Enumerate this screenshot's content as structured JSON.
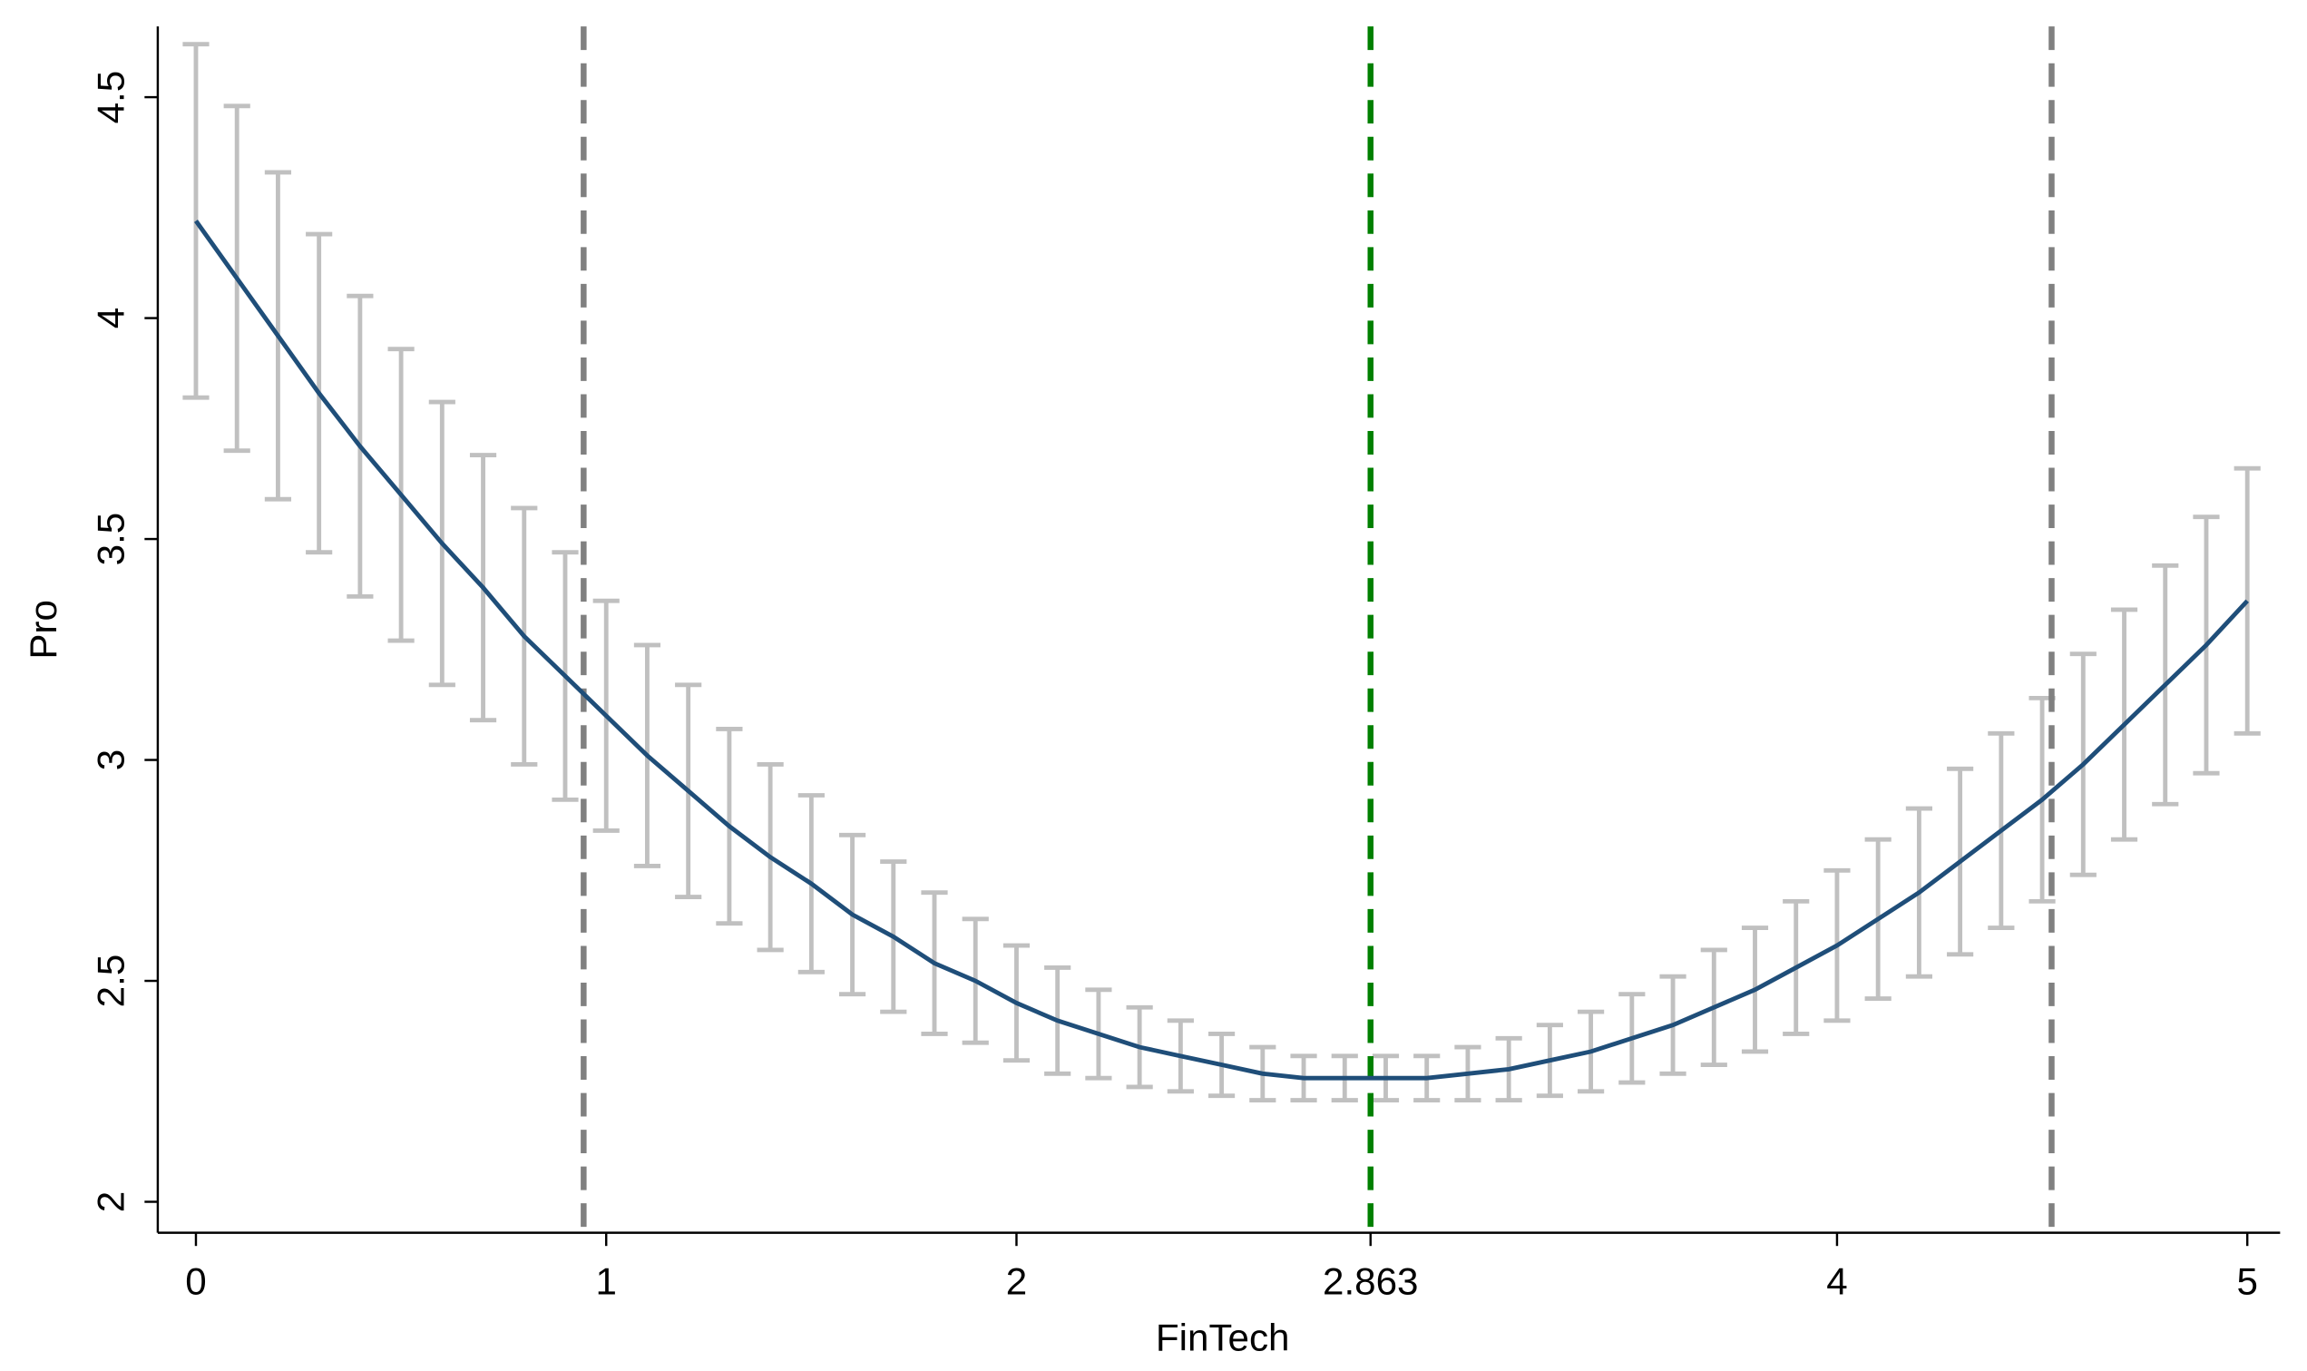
{
  "chart_data": {
    "type": "line",
    "x_label": "FinTech",
    "y_label": "Pro",
    "x": [
      0,
      0.1,
      0.2,
      0.3,
      0.4,
      0.5,
      0.6,
      0.7,
      0.8,
      0.9,
      1.0,
      1.1,
      1.2,
      1.3,
      1.4,
      1.5,
      1.6,
      1.7,
      1.8,
      1.9,
      2.0,
      2.1,
      2.2,
      2.3,
      2.4,
      2.5,
      2.6,
      2.7,
      2.8,
      2.9,
      3.0,
      3.1,
      3.2,
      3.3,
      3.4,
      3.5,
      3.6,
      3.7,
      3.8,
      3.9,
      4.0,
      4.1,
      4.2,
      4.3,
      4.4,
      4.5,
      4.6,
      4.7,
      4.8,
      4.9,
      5.0
    ],
    "series": [
      {
        "color": "#1f4e79",
        "error_color": "#c0c0c0",
        "values": [
          4.22,
          4.09,
          3.96,
          3.83,
          3.71,
          3.6,
          3.49,
          3.39,
          3.28,
          3.19,
          3.1,
          3.01,
          2.93,
          2.85,
          2.78,
          2.72,
          2.65,
          2.6,
          2.54,
          2.5,
          2.45,
          2.41,
          2.38,
          2.35,
          2.33,
          2.31,
          2.29,
          2.28,
          2.28,
          2.28,
          2.28,
          2.29,
          2.3,
          2.32,
          2.34,
          2.37,
          2.4,
          2.44,
          2.48,
          2.53,
          2.58,
          2.64,
          2.7,
          2.77,
          2.84,
          2.91,
          2.99,
          3.08,
          3.17,
          3.26,
          3.36
        ],
        "errors": [
          0.4,
          0.39,
          0.37,
          0.36,
          0.34,
          0.33,
          0.32,
          0.3,
          0.29,
          0.28,
          0.26,
          0.25,
          0.24,
          0.22,
          0.21,
          0.2,
          0.18,
          0.17,
          0.16,
          0.14,
          0.13,
          0.12,
          0.1,
          0.09,
          0.08,
          0.07,
          0.06,
          0.05,
          0.05,
          0.05,
          0.05,
          0.06,
          0.07,
          0.08,
          0.09,
          0.1,
          0.11,
          0.13,
          0.14,
          0.15,
          0.17,
          0.18,
          0.19,
          0.21,
          0.22,
          0.23,
          0.25,
          0.26,
          0.27,
          0.29,
          0.3
        ]
      }
    ],
    "reference_lines": [
      {
        "value": 0.945,
        "color": "#808080"
      },
      {
        "value": 2.863,
        "color": "#008000"
      },
      {
        "value": 4.523,
        "color": "#808080"
      }
    ],
    "xlim": [
      -0.093,
      5.08
    ],
    "ylim": [
      1.93,
      4.66
    ],
    "xticks": [
      0,
      1,
      2,
      2.863,
      4,
      5
    ],
    "yticks": [
      2,
      2.5,
      3,
      3.5,
      4,
      4.5
    ]
  }
}
